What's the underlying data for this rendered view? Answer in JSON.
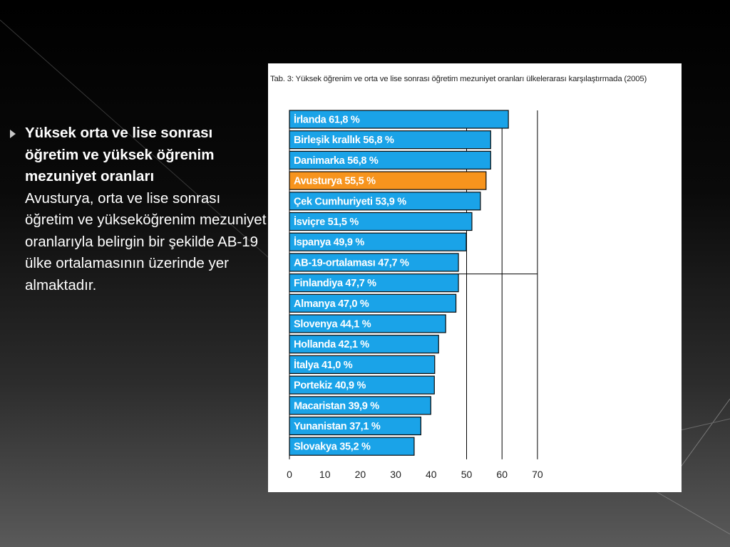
{
  "slide": {
    "heading": "Yüksek orta ve lise sonrası öğretim ve yüksek öğrenim mezuniyet oranları",
    "body": "Avusturya, orta ve lise sonrası öğretim ve yükseköğrenim mezuniyet oranlarıyla belirgin bir şekilde AB-19 ülke ortalamasının üzerinde yer almaktadır."
  },
  "chart_data": {
    "type": "bar",
    "orientation": "horizontal",
    "title": "Tab. 3: Yüksek öğrenim ve orta ve lise sonrası öğretim mezuniyet oranları ülkelerarası karşılaştırmada (2005)",
    "categories": [
      "İrlanda",
      "Birleşik krallık",
      "Danimarka",
      "Avusturya",
      "Çek Cumhuriyeti",
      "İsviçre",
      "İspanya",
      "AB-19-ortalaması",
      "Finlandiya",
      "Almanya",
      "Slovenya",
      "Hollanda",
      "İtalya",
      "Portekiz",
      "Macaristan",
      "Yunanistan",
      "Slovakya"
    ],
    "values": [
      61.8,
      56.8,
      56.8,
      55.5,
      53.9,
      51.5,
      49.9,
      47.7,
      47.7,
      47.0,
      44.1,
      42.1,
      41.0,
      40.9,
      39.9,
      37.1,
      35.2
    ],
    "labels": [
      "İrlanda 61,8 %",
      "Birleşik krallık 56,8 %",
      "Danimarka 56,8 %",
      "Avusturya 55,5 %",
      "Çek Cumhuriyeti 53,9 %",
      "İsviçre 51,5 %",
      "İspanya 49,9 %",
      "AB-19-ortalaması 47,7 %",
      "Finlandiya 47,7 %",
      "Almanya 47,0 %",
      "Slovenya 44,1 %",
      "Hollanda 42,1 %",
      "İtalya 41,0 %",
      "Portekiz 40,9 %",
      "Macaristan 39,9 %",
      "Yunanistan 37,1 %",
      "Slovakya 35,2 %"
    ],
    "highlight_index": 3,
    "xlim": [
      0,
      70
    ],
    "xticks": [
      "0",
      "10",
      "20",
      "30",
      "40",
      "50",
      "60",
      "70"
    ],
    "grid": true,
    "colors": {
      "bar": "#1aa3e8",
      "highlight": "#f7941d",
      "edge": "#0a0a0a",
      "label": "#ffffff",
      "grid": "#000000"
    }
  }
}
